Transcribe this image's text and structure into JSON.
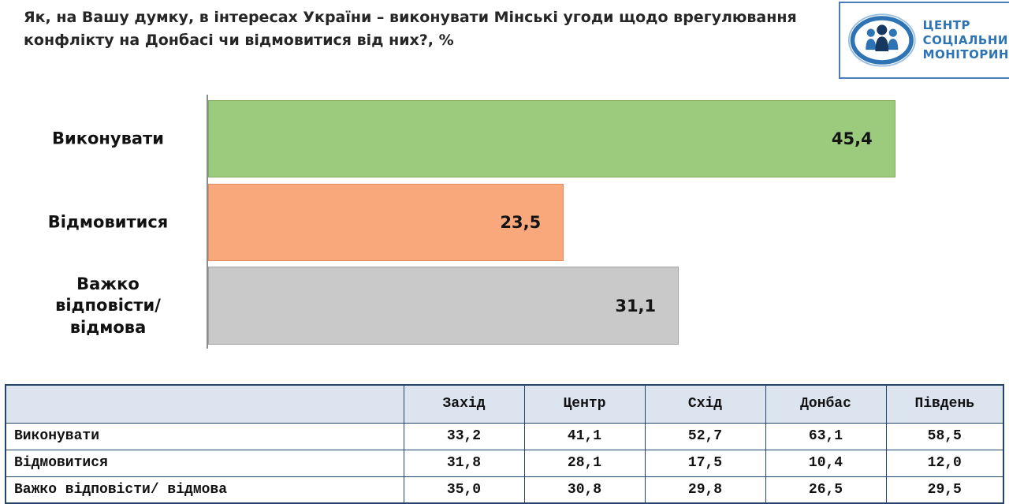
{
  "header": {
    "title_line1": "Як, на Вашу думку, в інтересах України – виконувати  Мінські угоди щодо врегулювання",
    "title_line2": "конфлікту на Донбасі чи відмовитися від них?, %",
    "logo": {
      "lines": [
        "ЦЕНТР",
        "СОЦІАЛЬНИЙ",
        "МОНІТОРИНГ"
      ]
    }
  },
  "chart_data": {
    "type": "bar",
    "orientation": "horizontal",
    "title": "Як, на Вашу думку, в інтересах України – виконувати Мінські угоди щодо врегулювання конфлікту на Донбасі чи відмовитися від них?, %",
    "categories": [
      "Виконувати",
      "Відмовитися",
      "Важко відповісти/ відмова"
    ],
    "values": [
      45.4,
      23.5,
      31.1
    ],
    "value_labels": [
      "45,4",
      "23,5",
      "31,1"
    ],
    "bar_colors": [
      "#9ccb7e",
      "#f9a87c",
      "#c9c9c9"
    ],
    "bar_border_colors": [
      "#7fae63",
      "#e08e60",
      "#a3a3a3"
    ],
    "xlim": [
      0,
      52.6
    ],
    "grid": false,
    "legend": false,
    "regional_table": {
      "columns": [
        "",
        "Захід",
        "Центр",
        "Схід",
        "Донбас",
        "Південь"
      ],
      "rows": [
        {
          "label": "Виконувати",
          "values": [
            "33,2",
            "41,1",
            "52,7",
            "63,1",
            "58,5"
          ]
        },
        {
          "label": "Відмовитися",
          "values": [
            "31,8",
            "28,1",
            "17,5",
            "10,4",
            "12,0"
          ]
        },
        {
          "label": "Важко відповісти/ відмова",
          "values": [
            "35,0",
            "30,8",
            "29,8",
            "26,5",
            "29,5"
          ]
        }
      ]
    }
  }
}
